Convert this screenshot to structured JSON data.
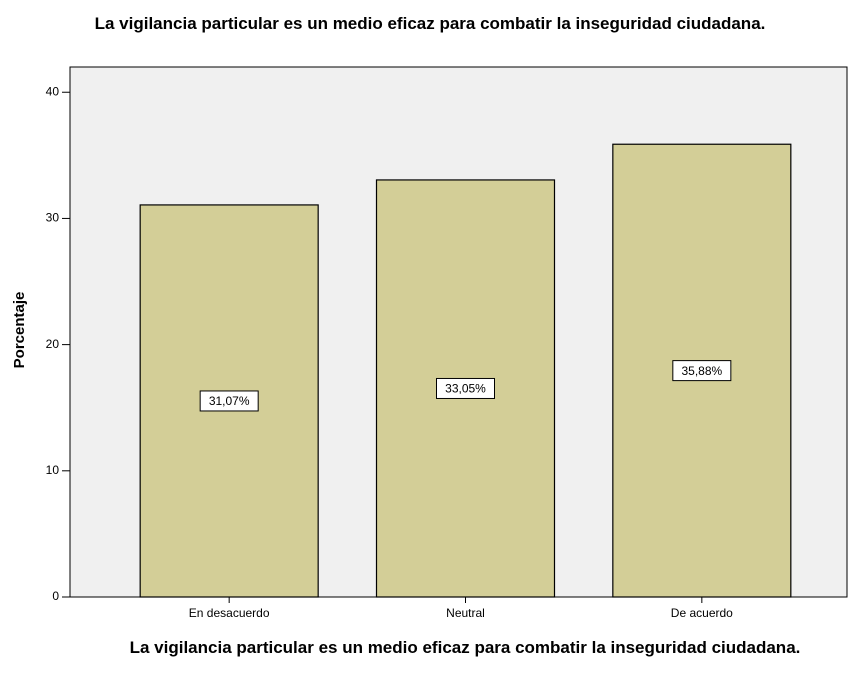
{
  "chart_data": {
    "type": "bar",
    "title": "La vigilancia particular es un medio eficaz para combatir la inseguridad ciudadana.",
    "xlabel": "La vigilancia particular es un medio eficaz para combatir la inseguridad ciudadana.",
    "ylabel": "Porcentaje",
    "categories": [
      "En desacuerdo",
      "Neutral",
      "De acuerdo"
    ],
    "values": [
      31.07,
      33.05,
      35.88
    ],
    "value_labels": [
      "31,07%",
      "33,05%",
      "35,88%"
    ],
    "color": "#d3ce97",
    "ylim": [
      0,
      42
    ],
    "yticks": [
      0,
      10,
      20,
      30,
      40
    ]
  }
}
